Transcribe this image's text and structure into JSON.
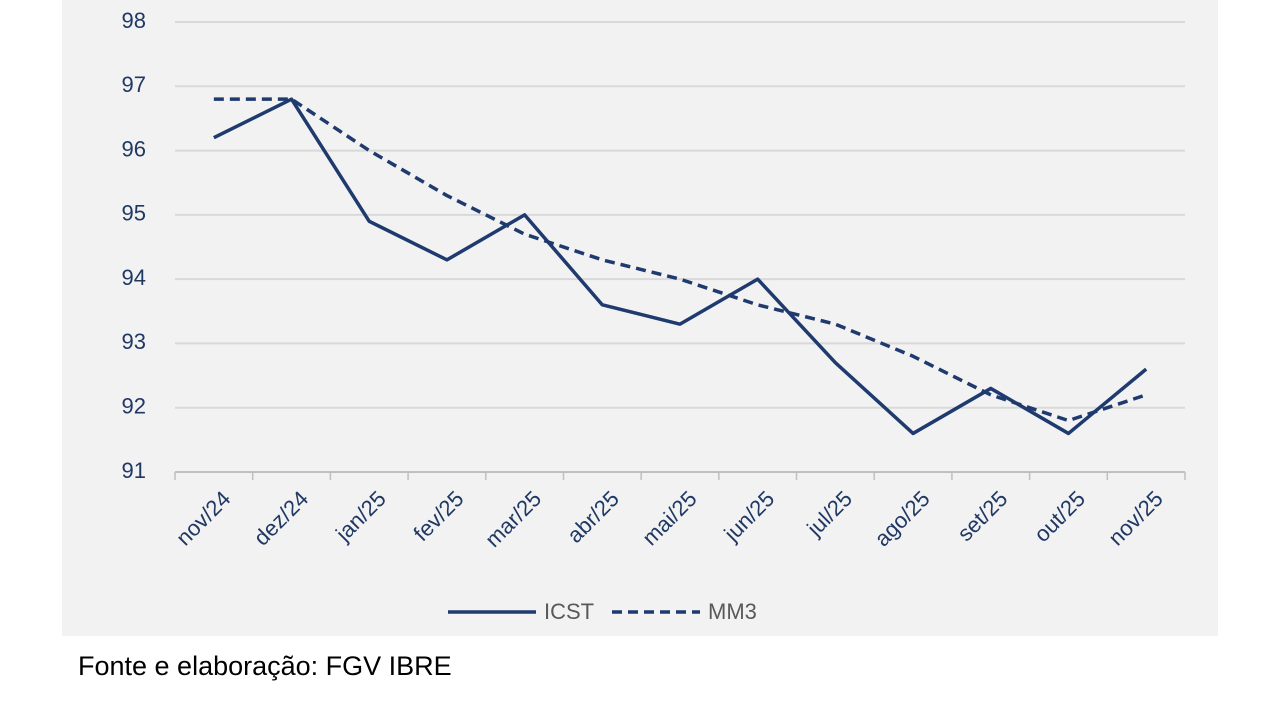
{
  "chart_data": {
    "type": "line",
    "categories": [
      "nov/24",
      "dez/24",
      "jan/25",
      "fev/25",
      "mar/25",
      "abr/25",
      "mai/25",
      "jun/25",
      "jul/25",
      "ago/25",
      "set/25",
      "out/25",
      "nov/25"
    ],
    "series": [
      {
        "name": "ICST",
        "color": "#1f3a6e",
        "dash": false,
        "values": [
          96.2,
          96.8,
          94.9,
          94.3,
          95.0,
          93.6,
          93.3,
          94.0,
          92.7,
          91.6,
          92.3,
          91.6,
          92.6
        ]
      },
      {
        "name": "MM3",
        "color": "#1f3a6e",
        "dash": true,
        "values": [
          96.8,
          96.8,
          96.0,
          95.3,
          94.7,
          94.3,
          94.0,
          93.6,
          93.3,
          92.8,
          92.2,
          91.8,
          92.2
        ]
      }
    ],
    "ylim": [
      91,
      98
    ],
    "yticks": [
      91,
      92,
      93,
      94,
      95,
      96,
      97,
      98
    ],
    "grid": true,
    "legend": "bottom",
    "source": "Fonte e elaboração: FGV IBRE"
  }
}
